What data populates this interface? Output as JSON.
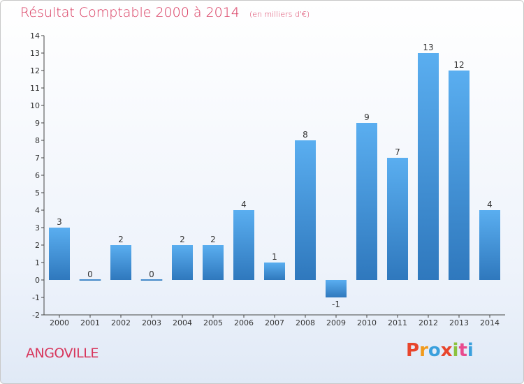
{
  "header": {
    "title": "Résultat Comptable 2000 à 2014",
    "unit_note": "(en milliers d'€)"
  },
  "footer": {
    "commune": "ANGOVILLE",
    "logo_text": "Proxiti",
    "logo_colors": [
      "#e8452c",
      "#f19a1b",
      "#3aa0dd",
      "#e8452c",
      "#8bc23f",
      "#e94b8e",
      "#3aa0dd"
    ]
  },
  "colors": {
    "title": "#d8365c",
    "bar_top": "#5aaef0",
    "bar_bottom": "#2f78bd",
    "axis": "#444444"
  },
  "chart_data": {
    "type": "bar",
    "title": "Résultat Comptable 2000 à 2014",
    "subtitle": "(en milliers d'€)",
    "xlabel": "",
    "ylabel": "",
    "categories": [
      "2000",
      "2001",
      "2002",
      "2003",
      "2004",
      "2005",
      "2006",
      "2007",
      "2008",
      "2009",
      "2010",
      "2011",
      "2012",
      "2013",
      "2014"
    ],
    "values": [
      3,
      0,
      2,
      0,
      2,
      2,
      4,
      1,
      8,
      -1,
      9,
      7,
      13,
      12,
      4
    ],
    "ylim": [
      -2,
      14
    ],
    "yticks": [
      -2,
      -1,
      0,
      1,
      2,
      3,
      4,
      5,
      6,
      7,
      8,
      9,
      10,
      11,
      12,
      13,
      14
    ],
    "ytick_labels": [
      "-2",
      "-1",
      "0",
      "1",
      "2",
      "3",
      "4",
      "5",
      "6",
      "7",
      "8",
      "9",
      "10",
      "11",
      "12",
      "13",
      "14"
    ],
    "grid": false,
    "legend": "none"
  }
}
